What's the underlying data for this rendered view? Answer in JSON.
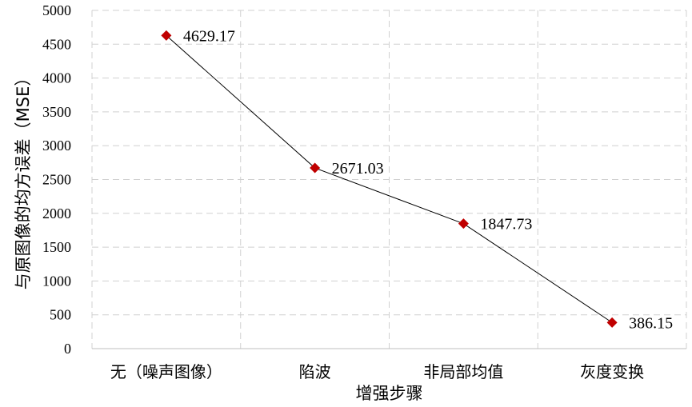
{
  "chart_data": {
    "type": "line",
    "title": "",
    "xlabel": "增强步骤",
    "ylabel": "与原图像的均方误差（MSE）",
    "categories": [
      "无（噪声图像）",
      "陷波",
      "非局部均值",
      "灰度变换"
    ],
    "series": [
      {
        "values": [
          4629.17,
          2671.03,
          1847.73,
          386.15
        ]
      }
    ],
    "data_labels": [
      "4629.17",
      "2671.03",
      "1847.73",
      "386.15"
    ],
    "ylim": [
      0,
      5000
    ],
    "yticks": [
      0,
      500,
      1000,
      1500,
      2000,
      2500,
      3000,
      3500,
      4000,
      4500,
      5000
    ],
    "grid": true,
    "legend": "none",
    "colors": {
      "line": "#000000",
      "marker": "#c00000"
    }
  }
}
